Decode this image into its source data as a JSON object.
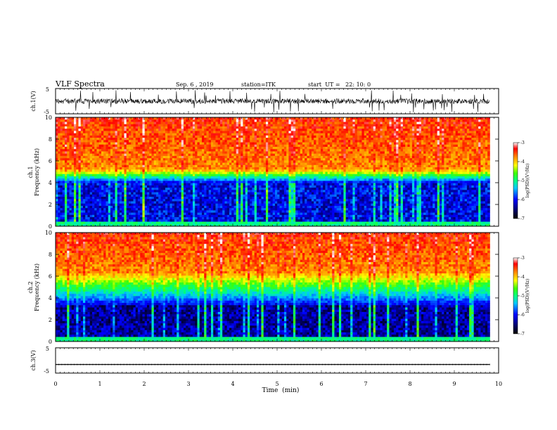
{
  "header": {
    "title": "VLF Spectra",
    "date": "Sep. 6 , 2019",
    "station": "station=ITK",
    "start": "start  UT =   22: 10: 0"
  },
  "chart_data": [
    {
      "type": "line",
      "name": "ch1-waveform",
      "ylabel": "ch.1(V)",
      "ylim": [
        -5,
        5
      ],
      "yticks": [
        "5",
        "-5"
      ],
      "xlim": [
        0,
        10
      ],
      "baseline": 0,
      "noise_amplitude": 1.0,
      "spike_amplitude": 4.5
    },
    {
      "type": "heatmap",
      "name": "ch1-spectrogram",
      "ylabel": "ch.1\nFrequency  (kHz)",
      "ylim": [
        0,
        10
      ],
      "yticks": [
        "0",
        "2",
        "4",
        "6",
        "8",
        "10"
      ],
      "xlim": [
        0,
        9.8
      ],
      "colorbar": {
        "label": "log(PSD)(V²/Hz)",
        "range": [
          -7,
          -3
        ],
        "ticks": [
          "-3",
          "-4",
          "-5",
          "-6",
          "-7"
        ]
      }
    },
    {
      "type": "heatmap",
      "name": "ch2-spectrogram",
      "ylabel": "ch.2\nFrequency  (kHz)",
      "ylim": [
        0,
        10
      ],
      "yticks": [
        "0",
        "2",
        "4",
        "6",
        "8",
        "10"
      ],
      "xlim": [
        0,
        9.8
      ],
      "colorbar": {
        "label": "log(PSD)(V²/Hz)",
        "range": [
          -7,
          -3
        ],
        "ticks": [
          "-3",
          "-4",
          "-5",
          "-6",
          "-7"
        ]
      }
    },
    {
      "type": "line",
      "name": "ch3-waveform",
      "ylabel": "ch.3(V)",
      "ylim": [
        -5,
        5
      ],
      "yticks": [
        "5",
        "-5"
      ],
      "xlim": [
        0,
        10
      ],
      "baseline": -1.6
    }
  ],
  "xaxis": {
    "label": "Time  (min)",
    "ticks": [
      "0",
      "1",
      "2",
      "3",
      "4",
      "5",
      "6",
      "7",
      "8",
      "9",
      "10"
    ]
  },
  "colors": {
    "axis": "#000000",
    "background": "#ffffff"
  }
}
